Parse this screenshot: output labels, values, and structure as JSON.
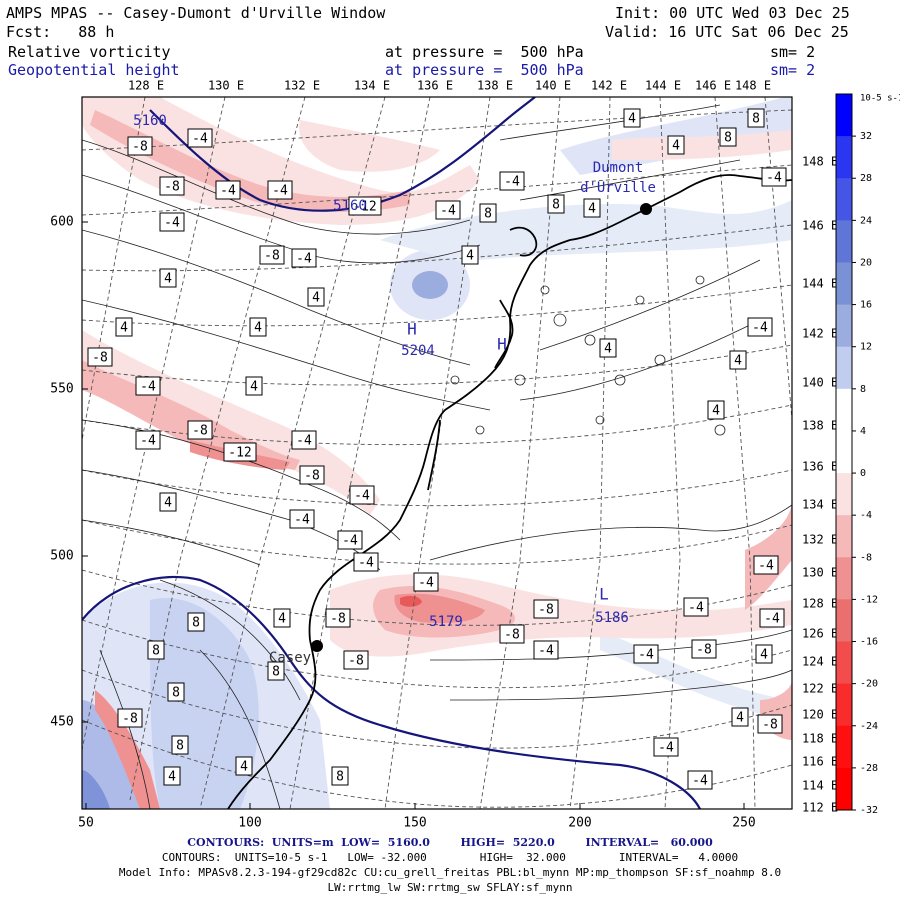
{
  "header": {
    "title": "AMPS MPAS -- Casey-Dumont d'Urville Window",
    "init": "Init: 00 UTC Wed 03 Dec 25",
    "fcst": "Fcst:   88 h",
    "valid": "Valid: 16 UTC Sat 06 Dec 25",
    "field1": {
      "name": "Relative vorticity",
      "level": "at pressure =  500 hPa",
      "sm": "sm= 2"
    },
    "field2": {
      "name": "Geopotential height",
      "level": "at pressure =  500 hPa",
      "sm": "sm= 2"
    }
  },
  "axes": {
    "top_lon": [
      "128 E",
      "130 E",
      "132 E",
      "134 E",
      "136 E",
      "138 E",
      "140 E",
      "142 E",
      "144 E",
      "146 E",
      "148 E"
    ],
    "right_lat": [
      "148 E",
      "146 E",
      "144 E",
      "142 E",
      "140 E",
      "138 E",
      "136 E",
      "134 E",
      "132 E",
      "130 E",
      "128 E",
      "126 E",
      "124 E",
      "122 E",
      "120 E",
      "118 E",
      "116 E",
      "114 E",
      "112 E"
    ],
    "x_ticks": [
      "50",
      "100",
      "150",
      "200",
      "250"
    ],
    "y_ticks": [
      "600",
      "550",
      "500",
      "450"
    ]
  },
  "colorbar": {
    "unit": "10-5 s-1",
    "labels": [
      "32",
      "28",
      "24",
      "20",
      "16",
      "12",
      "8",
      "4",
      "0",
      "-4",
      "-8",
      "-12",
      "-16",
      "-20",
      "-24",
      "-28",
      "-32"
    ],
    "colors": [
      "#0000ff",
      "#2b36f2",
      "#4556e6",
      "#5f75d8",
      "#7b91d5",
      "#9badde",
      "#c1cdef",
      "#ffffff",
      "#ffffff",
      "#fbe2e2",
      "#f5b9b9",
      "#ef9191",
      "#eb6f6f",
      "#f24c4c",
      "#f92b2b",
      "#ff1010",
      "#ff0000"
    ]
  },
  "map": {
    "stations": [
      {
        "name": "Casey"
      },
      {
        "name": "Dumont\nd'Urville"
      }
    ],
    "height_labels": [
      "5160",
      "5160",
      "5179",
      "5186",
      "5204"
    ],
    "high_markers": [
      "H",
      "H"
    ],
    "low_markers": [
      "L"
    ],
    "vort_labels": [
      "-4",
      "-8",
      "-12",
      "4",
      "8"
    ]
  },
  "footer": {
    "line1_contours": "CONTOURS:  UNITS=m  LOW=  5160.0        HIGH=  5220.0        INTERVAL=   60.000",
    "line2_contours": "CONTOURS:  UNITS=10-5 s-1   LOW= -32.000        HIGH=  32.000        INTERVAL=   4.0000",
    "model_info": "Model Info: MPASv8.2.3-194-gf29cd82c CU:cu_grell_freitas PBL:bl_mynn MP:mp_thompson SF:sf_noahmp 8.0",
    "physics": "LW:rrtmg_lw SW:rrtmg_sw SFLAY:sf_mynn"
  }
}
